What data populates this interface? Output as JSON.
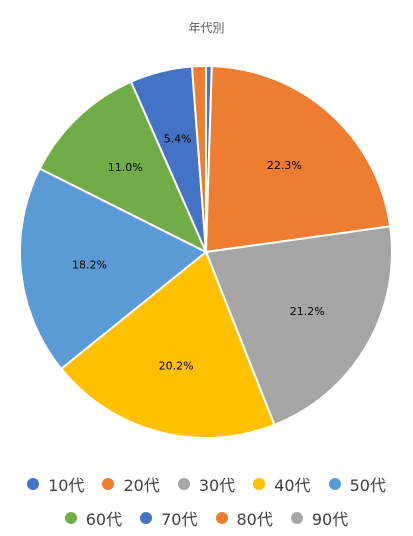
{
  "chart_data": {
    "type": "pie",
    "title": "年代別",
    "legend_position": "bottom",
    "categories": [
      "10代",
      "20代",
      "30代",
      "40代",
      "50代",
      "60代",
      "70代",
      "80代",
      "90代"
    ],
    "values": [
      0.5,
      22.3,
      21.2,
      20.2,
      18.2,
      11.0,
      5.4,
      1.2,
      0.0
    ],
    "data_labels": [
      "",
      "22.3%",
      "21.2%",
      "20.2%",
      "18.2%",
      "11.0%",
      "5.4%",
      "",
      ""
    ],
    "colors": [
      "#4472C4",
      "#ED7D31",
      "#A5A5A5",
      "#FFC000",
      "#5B9BD5",
      "#70AD47",
      "#4472C4",
      "#ED7D31",
      "#A5A5A5"
    ],
    "legend_rows": [
      [
        0,
        1,
        2,
        3,
        4
      ],
      [
        5,
        6,
        7,
        8
      ]
    ]
  }
}
